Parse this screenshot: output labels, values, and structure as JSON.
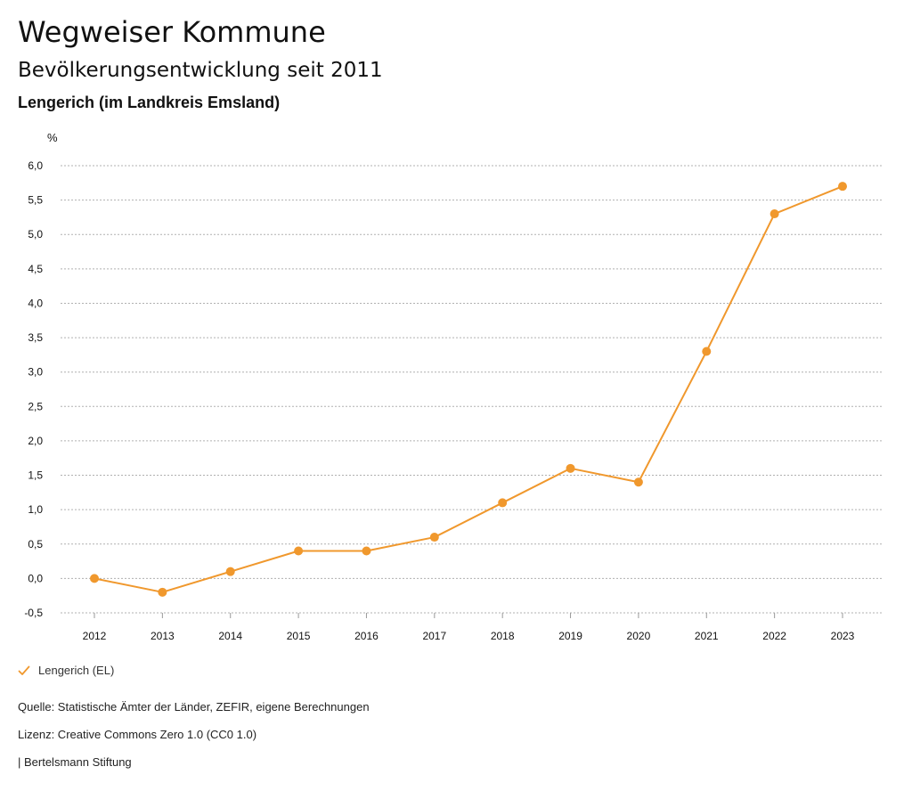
{
  "header": {
    "title": "Wegweiser Kommune",
    "subtitle": "Bevölkerungsentwicklung seit 2011",
    "region": "Lengerich (im Landkreis Emsland)"
  },
  "colors": {
    "series": "#f0982d",
    "grid": "#b0b0b0",
    "text": "#111111"
  },
  "chart_data": {
    "type": "line",
    "title": "Bevölkerungsentwicklung seit 2011",
    "ylabel": "%",
    "xlabel": "",
    "ylim": [
      -0.5,
      6.0
    ],
    "y_ticks": [
      "6,0",
      "5,5",
      "5,0",
      "4,5",
      "4,0",
      "3,5",
      "3,0",
      "2,5",
      "2,0",
      "1,5",
      "1,0",
      "0,5",
      "0,0",
      "-0,5"
    ],
    "y_tick_values": [
      6.0,
      5.5,
      5.0,
      4.5,
      4.0,
      3.5,
      3.0,
      2.5,
      2.0,
      1.5,
      1.0,
      0.5,
      0.0,
      -0.5
    ],
    "categories": [
      "2012",
      "2013",
      "2014",
      "2015",
      "2016",
      "2017",
      "2018",
      "2019",
      "2020",
      "2021",
      "2022",
      "2023"
    ],
    "grid": true,
    "legend_position": "bottom-left",
    "series": [
      {
        "name": "Lengerich (EL)",
        "values": [
          0.0,
          -0.2,
          0.1,
          0.4,
          0.4,
          0.6,
          1.1,
          1.6,
          1.4,
          3.3,
          5.3,
          5.7
        ]
      }
    ]
  },
  "legend": {
    "items": [
      {
        "label": "Lengerich (EL)",
        "icon": "check-icon"
      }
    ]
  },
  "footer": {
    "source": "Quelle: Statistische Ämter der Länder, ZEFIR, eigene Berechnungen",
    "license": "Lizenz: Creative Commons Zero 1.0 (CC0 1.0)",
    "brand": "| Bertelsmann Stiftung"
  }
}
